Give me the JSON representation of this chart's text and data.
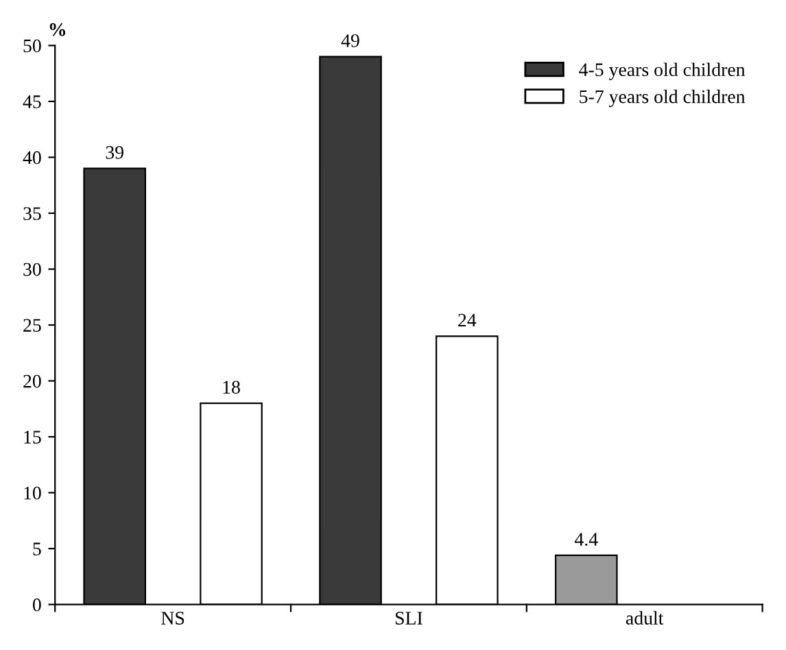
{
  "chart_data": {
    "type": "bar",
    "ylabel": "%",
    "categories": [
      "NS",
      "SLI",
      "adult"
    ],
    "series": [
      {
        "name": "4-5 years old children",
        "color": "#3a3a3a",
        "colors": [
          "#3a3a3a",
          "#3a3a3a",
          "#9a9a9a"
        ],
        "values": [
          39,
          49,
          4.4
        ]
      },
      {
        "name": "5-7 years old children",
        "color": "#ffffff",
        "values": [
          18,
          24,
          null
        ]
      }
    ],
    "ylim": [
      0,
      50
    ],
    "yticks": [
      0,
      5,
      10,
      15,
      20,
      25,
      30,
      35,
      40,
      45,
      50
    ],
    "data_labels": true,
    "legend": "top right",
    "grid": false
  }
}
